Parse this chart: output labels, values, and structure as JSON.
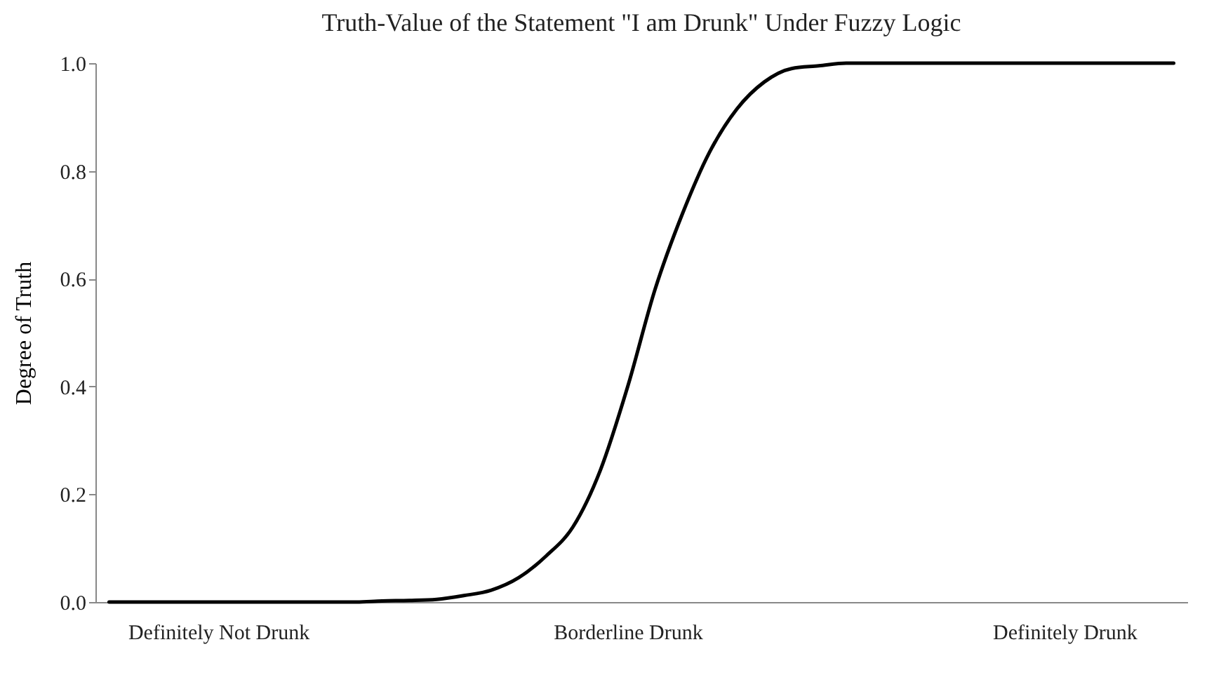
{
  "chart_data": {
    "type": "line",
    "title": "Truth-Value of the Statement \"I am Drunk\" Under Fuzzy Logic",
    "ylabel": "Degree of Truth",
    "categories": [
      null,
      null,
      null,
      null,
      "Definitely Not Drunk",
      null,
      null,
      null,
      null,
      null,
      null,
      null,
      null,
      null,
      null,
      null,
      null,
      null,
      null,
      "Borderline Drunk",
      null,
      null,
      null,
      null,
      null,
      null,
      null,
      null,
      null,
      null,
      null,
      null,
      null,
      null,
      null,
      "Definitely Drunk",
      null,
      null,
      null,
      null
    ],
    "series": [
      {
        "color": "#000000",
        "values": [
          0,
          0,
          0,
          0,
          0,
          0,
          0,
          0,
          0,
          0,
          0.002,
          0.003,
          0.005,
          0.012,
          0.022,
          0.045,
          0.085,
          0.14,
          0.245,
          0.4,
          0.58,
          0.72,
          0.835,
          0.915,
          0.965,
          0.99,
          0.995,
          1.0,
          1.0,
          1.0,
          1.0,
          1.0,
          1.0,
          1.0,
          1.0,
          1.0,
          1.0,
          1.0,
          1.0,
          1.0
        ]
      }
    ],
    "ylim": [
      0,
      1
    ],
    "yticks": [
      {
        "value": 0,
        "label": "0.0"
      },
      {
        "value": 0.2,
        "label": "0.2"
      },
      {
        "value": 0.4,
        "label": "0.4"
      },
      {
        "value": 0.6,
        "label": "0.6"
      },
      {
        "value": 0.8,
        "label": "0.8"
      },
      {
        "value": 1,
        "label": "1.0"
      }
    ],
    "grid": false,
    "marker": "none",
    "line_style": "solid"
  }
}
